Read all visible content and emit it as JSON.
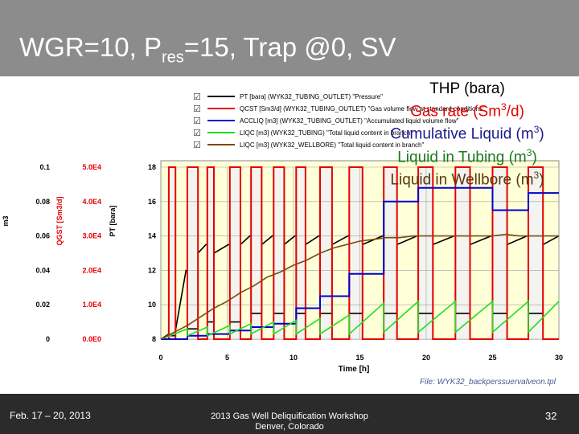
{
  "slide": {
    "title_pre": "WGR=10, P",
    "title_sub": "res",
    "title_post": "=15, Trap @0, SV",
    "file_caption": "File: WYK32_backperssuervalveon.tpl"
  },
  "overlay_labels": {
    "thp": "THP (bara)",
    "gas_pre": "Gas rate (Sm",
    "gas_sup": "3",
    "gas_post": "/d)",
    "cum_pre": "Cumulative Liquid (m",
    "cum_sup": "3",
    "cum_post": ")",
    "tub_pre": "Liquid in Tubing (m",
    "tub_sup": "3",
    "tub_post": ")",
    "wb_pre": "Liquid in Wellbore (m",
    "wb_sup": "3",
    "wb_post": ")"
  },
  "footer": {
    "date": "Feb. 17 – 20, 2013",
    "conference_line1": "2013 Gas Well Deliquification Workshop",
    "conference_line2": "Denver, Colorado",
    "page": "32"
  },
  "colors": {
    "pt": "#000000",
    "qcst": "#e60000",
    "accliq": "#0000cc",
    "liqc_tubing": "#22dd22",
    "liqc_wellbore": "#7a4a10",
    "grid": "#a0a0a0",
    "plot_bg": "#ffffd8"
  },
  "chart_data": {
    "type": "line",
    "xlabel": "Time [h]",
    "x_ticks": [
      0,
      5,
      10,
      15,
      20,
      25,
      30
    ],
    "xlim": [
      0,
      30
    ],
    "axes": [
      {
        "label": "m3",
        "ticks": [
          "0",
          "0.02",
          "0.04",
          "0.06",
          "0.08",
          "0.1"
        ],
        "range": [
          0,
          0.1
        ],
        "color": "#000000"
      },
      {
        "label": "QGST [Sm3/d]",
        "ticks": [
          "0.0E0",
          "1.0E4",
          "2.0E4",
          "3.0E4",
          "4.0E4",
          "5.0E4"
        ],
        "range": [
          0,
          50000
        ],
        "color": "#e60000"
      },
      {
        "label": "PT [bara]",
        "ticks": [
          "8",
          "10",
          "12",
          "14",
          "16",
          "18"
        ],
        "range": [
          8,
          18
        ],
        "color": "#000000"
      }
    ],
    "legend": [
      {
        "checkbox": "☑",
        "text": "PT [bara] (WYK32_TUBING_OUTLET) \"Pressure\""
      },
      {
        "checkbox": "☑",
        "text": "QCST [Sm3/d] (WYK32_TUBING_OUTLET) \"Gas volume flow at standard conditions\""
      },
      {
        "checkbox": "☑",
        "text": "ACCLIQ [m3] (WYK32_TUBING_OUTLET) \"Accumulated liquid volume flow\""
      },
      {
        "checkbox": "☑",
        "text": "LIQC [m3] (WYK32_TUBING) \"Total liquid content in branch\""
      },
      {
        "checkbox": "☑",
        "text": "LIQC [m3] (WYK32_WELLBORE) \"Total liquid content in branch\""
      }
    ],
    "valve_open_intervals": [
      [
        0.6,
        1.1
      ],
      [
        2.0,
        2.8
      ],
      [
        3.5,
        4.0
      ],
      [
        5.2,
        6.0
      ],
      [
        6.8,
        7.6
      ],
      [
        8.5,
        9.3
      ],
      [
        10.2,
        10.9
      ],
      [
        12.0,
        12.9
      ],
      [
        14.2,
        15.2
      ],
      [
        16.8,
        17.8
      ],
      [
        19.4,
        20.5
      ],
      [
        22.2,
        23.3
      ],
      [
        25.0,
        26.1
      ],
      [
        27.7,
        28.8
      ]
    ],
    "series": [
      {
        "name": "PT [bara] (WYK32_TUBING_OUTLET) \"Pressure\"",
        "axis": 2,
        "x": [
          0,
          0.6,
          0.6,
          1.1,
          1.1,
          1.9,
          2.0,
          2.0,
          2.8,
          2.8,
          3.4,
          3.5,
          3.5,
          4.0,
          4.0,
          5.1,
          5.2,
          5.2,
          6.0,
          6.0,
          6.7,
          6.8,
          6.8,
          7.6,
          7.6,
          8.4,
          8.5,
          8.5,
          9.3,
          9.3,
          10.1,
          10.2,
          10.2,
          10.9,
          10.9,
          11.9,
          12.0,
          12.0,
          12.9,
          12.9,
          14.1,
          14.2,
          14.2,
          15.2,
          15.2,
          16.7,
          16.8,
          16.8,
          17.8,
          17.8,
          19.3,
          19.4,
          19.4,
          20.5,
          20.5,
          22.1,
          22.2,
          22.2,
          23.3,
          23.3,
          24.9,
          25.0,
          25.0,
          26.1,
          26.1,
          27.6,
          27.7,
          27.7,
          28.8,
          28.8,
          30
        ],
        "y": [
          8,
          8.3,
          8.2,
          8.2,
          8.5,
          12.0,
          12.0,
          8.6,
          8.6,
          13.0,
          13.5,
          13.5,
          9.0,
          9.0,
          13.0,
          13.5,
          13.5,
          9.0,
          9.0,
          13.5,
          14.0,
          14.0,
          9.5,
          9.5,
          13.5,
          14.0,
          14.0,
          9.5,
          9.5,
          13.5,
          14.0,
          14.0,
          9.5,
          9.5,
          13.5,
          14.0,
          14.0,
          9.5,
          9.5,
          13.5,
          14.0,
          14.0,
          9.5,
          9.5,
          13.5,
          14.0,
          14.0,
          9.5,
          9.5,
          13.5,
          14.0,
          14.0,
          9.5,
          9.5,
          13.5,
          14.0,
          14.0,
          9.5,
          9.5,
          13.5,
          14.0,
          14.0,
          9.5,
          9.5,
          13.5,
          14.0,
          14.0,
          9.5,
          9.5,
          13.5,
          14.0
        ]
      },
      {
        "name": "QCST [Sm3/d] (WYK32_TUBING_OUTLET) \"Gas volume flow at standard conditions\"",
        "axis": 1,
        "x": [
          0,
          0.6,
          0.6,
          1.1,
          1.1,
          2.0,
          2.0,
          2.8,
          2.8,
          3.5,
          3.5,
          4.0,
          4.0,
          5.2,
          5.2,
          6.0,
          6.0,
          6.8,
          6.8,
          7.6,
          7.6,
          8.5,
          8.5,
          9.3,
          9.3,
          10.2,
          10.2,
          10.9,
          10.9,
          12.0,
          12.0,
          12.9,
          12.9,
          14.2,
          14.2,
          15.2,
          15.2,
          16.8,
          16.8,
          17.8,
          17.8,
          19.4,
          19.4,
          20.5,
          20.5,
          22.2,
          22.2,
          23.3,
          23.3,
          25.0,
          25.0,
          26.1,
          26.1,
          27.7,
          27.7,
          28.8,
          28.8,
          30
        ],
        "y": [
          0,
          0,
          50000,
          50000,
          0,
          0,
          50000,
          50000,
          0,
          0,
          50000,
          50000,
          0,
          0,
          50000,
          50000,
          0,
          0,
          50000,
          50000,
          0,
          0,
          50000,
          50000,
          0,
          0,
          50000,
          50000,
          0,
          0,
          50000,
          50000,
          0,
          0,
          50000,
          50000,
          0,
          0,
          50000,
          50000,
          0,
          0,
          50000,
          50000,
          0,
          0,
          50000,
          50000,
          0,
          0,
          50000,
          50000,
          0,
          0,
          50000,
          50000,
          0,
          0
        ]
      },
      {
        "name": "ACCLIQ [m3] (WYK32_TUBING_OUTLET) \"Accumulated liquid volume flow\"",
        "axis": 0,
        "x": [
          0,
          2.0,
          2.0,
          3.5,
          3.5,
          5.2,
          5.2,
          6.8,
          6.8,
          8.5,
          8.5,
          10.2,
          10.2,
          12.0,
          12.0,
          14.2,
          14.2,
          16.8,
          16.8,
          19.4,
          19.4,
          22.2,
          22.2,
          25.0,
          25.0,
          27.7,
          27.7,
          30
        ],
        "y": [
          0,
          0,
          0.002,
          0.002,
          0.003,
          0.003,
          0.005,
          0.005,
          0.007,
          0.007,
          0.009,
          0.009,
          0.018,
          0.018,
          0.025,
          0.025,
          0.038,
          0.038,
          0.08,
          0.08,
          0.088,
          0.088,
          0.088,
          0.088,
          0.075,
          0.075,
          0.085,
          0.085
        ]
      },
      {
        "name": "LIQC [m3] (WYK32_TUBING) \"Total liquid content in branch\"",
        "axis": 0,
        "x": [
          0,
          2.0,
          2.0,
          3.5,
          3.5,
          5.2,
          5.2,
          6.8,
          6.8,
          8.5,
          8.5,
          10.2,
          10.2,
          12.0,
          12.0,
          14.2,
          14.2,
          16.8,
          16.8,
          19.4,
          19.4,
          22.2,
          22.2,
          25.0,
          25.0,
          27.7,
          27.7,
          30
        ],
        "y": [
          0,
          0.006,
          0.002,
          0.007,
          0.002,
          0.008,
          0.003,
          0.009,
          0.003,
          0.01,
          0.003,
          0.011,
          0.003,
          0.012,
          0.003,
          0.014,
          0.003,
          0.021,
          0.004,
          0.022,
          0.004,
          0.022,
          0.004,
          0.022,
          0.004,
          0.022,
          0.004,
          0.022
        ]
      },
      {
        "name": "LIQC [m3] (WYK32_WELLBORE) \"Total liquid content in branch\"",
        "axis": 0,
        "x": [
          0,
          1,
          2,
          3,
          4,
          5,
          6,
          7,
          8,
          9,
          10,
          11,
          12,
          13,
          14,
          15,
          16,
          17,
          18,
          19,
          20,
          21,
          22,
          23,
          24,
          25,
          26,
          27,
          28,
          29,
          30
        ],
        "y": [
          0,
          0.004,
          0.008,
          0.013,
          0.018,
          0.022,
          0.027,
          0.031,
          0.036,
          0.039,
          0.043,
          0.046,
          0.05,
          0.053,
          0.055,
          0.057,
          0.058,
          0.059,
          0.059,
          0.06,
          0.06,
          0.06,
          0.06,
          0.06,
          0.06,
          0.06,
          0.061,
          0.06,
          0.06,
          0.06,
          0.06
        ]
      }
    ]
  }
}
